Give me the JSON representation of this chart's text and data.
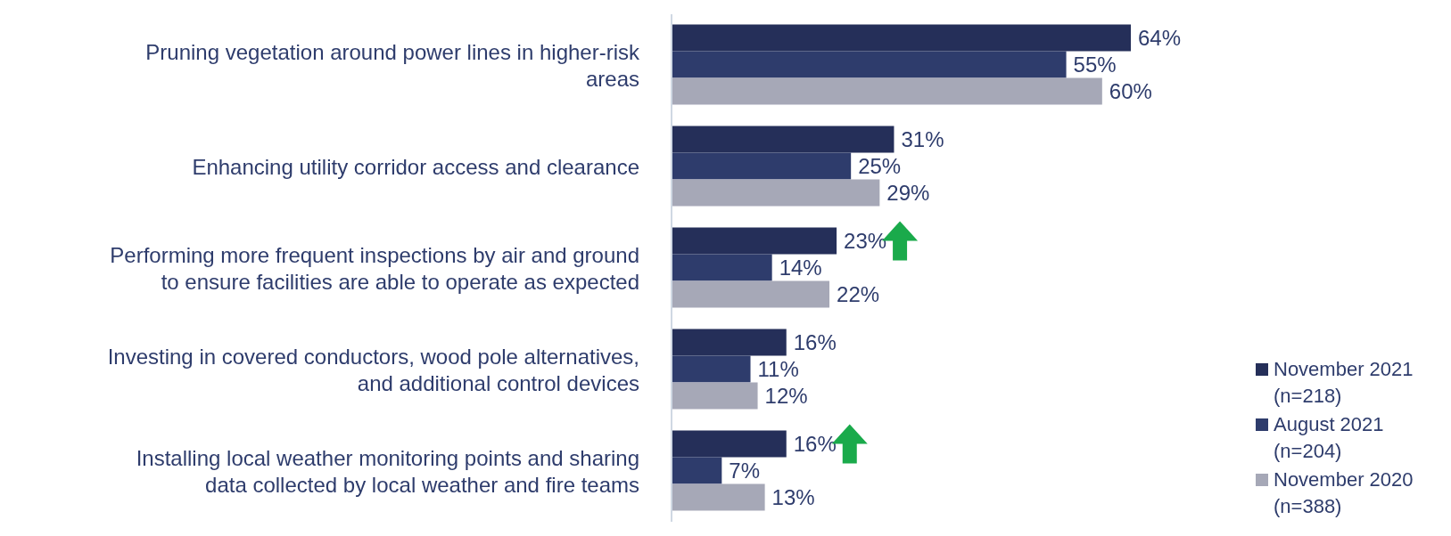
{
  "chart_data": {
    "type": "bar",
    "orientation": "horizontal",
    "categories": [
      "Pruning vegetation around power lines in higher-risk areas",
      "Enhancing utility corridor access and clearance",
      "Performing more frequent inspections by air and ground to ensure facilities are able to operate as expected",
      "Investing in covered conductors, wood pole alternatives, and additional control devices",
      "Installing local weather monitoring points and sharing data collected by local weather and fire teams"
    ],
    "series": [
      {
        "name": "November 2021 (n=218)",
        "color": "#252f59",
        "values": [
          64,
          31,
          23,
          16,
          16
        ],
        "value_labels": [
          "64%",
          "31%",
          "23%",
          "16%",
          "16%"
        ]
      },
      {
        "name": "August 2021 (n=204)",
        "color": "#2e3c6c",
        "values": [
          55,
          25,
          14,
          11,
          7
        ],
        "value_labels": [
          "55%",
          "25%",
          "14%",
          "11%",
          "7%"
        ]
      },
      {
        "name": "November 2020 (n=388)",
        "color": "#a6a8b7",
        "values": [
          60,
          29,
          22,
          12,
          13
        ],
        "value_labels": [
          "60%",
          "29%",
          "22%",
          "12%",
          "13%"
        ]
      }
    ],
    "legend": "bottom right",
    "grid": false
  }
}
